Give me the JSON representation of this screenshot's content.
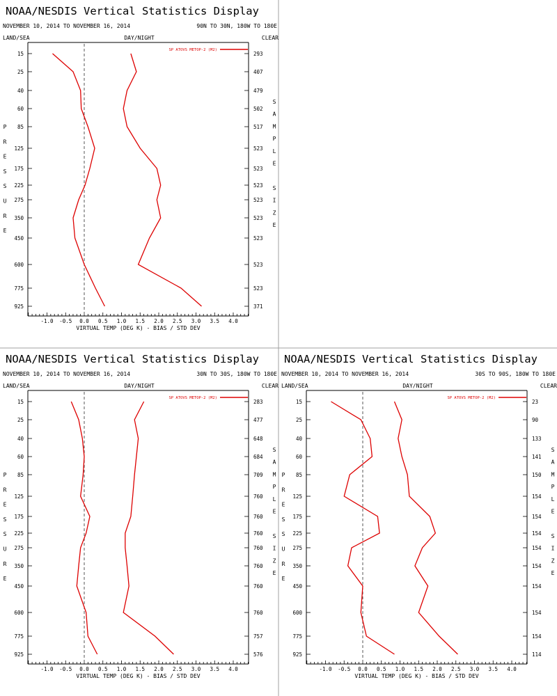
{
  "chart_data": [
    {
      "type": "line",
      "title": "NOAA/NESDIS Vertical Statistics Display",
      "date_range": "NOVEMBER 10, 2014 TO NOVEMBER 16, 2014",
      "region": "90N TO 30N, 180W TO 180E",
      "top_left_label": "LAND/SEA",
      "top_center_label": "DAY/NIGHT",
      "top_right_label": "CLEAR",
      "left_axis_title": "PRESSURE",
      "right_axis_title": "SAMPLE SIZE",
      "xlabel": "VIRTUAL TEMP (DEG K) - BIAS / STD DEV",
      "legend": "SP ATOVS METOP-2 (M2)",
      "legend_position": "top-right",
      "x_ticks": [
        "-1.0",
        "-0.5",
        "0.0",
        "0.5",
        "1.0",
        "1.5",
        "2.0",
        "2.5",
        "3.0",
        "3.5",
        "4.0"
      ],
      "xlim": [
        -1.5,
        4.5
      ],
      "pressure_levels": [
        "15",
        "25",
        "40",
        "60",
        "85",
        "125",
        "175",
        "225",
        "275",
        "350",
        "450",
        "600",
        "775",
        "925"
      ],
      "sample_size": [
        "293",
        "407",
        "479",
        "502",
        "517",
        "523",
        "523",
        "523",
        "523",
        "523",
        "523",
        "523",
        "523",
        "371"
      ],
      "bias": [
        -0.85,
        -0.3,
        -0.1,
        -0.08,
        0.1,
        0.28,
        0.15,
        0.02,
        -0.15,
        -0.3,
        -0.25,
        0.0,
        0.3,
        0.55
      ],
      "std_dev": [
        1.25,
        1.4,
        1.15,
        1.05,
        1.15,
        1.5,
        1.95,
        2.05,
        1.95,
        2.05,
        1.75,
        1.45,
        2.6,
        3.15
      ],
      "line_color": "#dd0000"
    },
    {
      "type": "line",
      "title": "NOAA/NESDIS Vertical Statistics Display",
      "date_range": "NOVEMBER 10, 2014 TO NOVEMBER 16, 2014",
      "region": "30N TO 30S, 180W TO 180E",
      "top_left_label": "LAND/SEA",
      "top_center_label": "DAY/NIGHT",
      "top_right_label": "CLEAR",
      "left_axis_title": "PRESSURE",
      "right_axis_title": "SAMPLE SIZE",
      "xlabel": "VIRTUAL TEMP (DEG K) - BIAS / STD DEV",
      "legend": "SP ATOVS METOP-2 (M2)",
      "legend_position": "top-right",
      "x_ticks": [
        "-1.0",
        "-0.5",
        "0.0",
        "0.5",
        "1.0",
        "1.5",
        "2.0",
        "2.5",
        "3.0",
        "3.5",
        "4.0"
      ],
      "xlim": [
        -1.5,
        4.5
      ],
      "pressure_levels": [
        "15",
        "25",
        "40",
        "60",
        "85",
        "125",
        "175",
        "225",
        "275",
        "350",
        "450",
        "600",
        "775",
        "925"
      ],
      "sample_size": [
        "283",
        "477",
        "648",
        "684",
        "709",
        "760",
        "760",
        "760",
        "760",
        "760",
        "760",
        "760",
        "757",
        "576"
      ],
      "bias": [
        -0.35,
        -0.15,
        -0.05,
        0.0,
        -0.03,
        -0.1,
        0.15,
        0.05,
        -0.1,
        -0.15,
        -0.2,
        0.05,
        0.1,
        0.35
      ],
      "std_dev": [
        1.6,
        1.35,
        1.45,
        1.4,
        1.35,
        1.3,
        1.25,
        1.1,
        1.1,
        1.15,
        1.2,
        1.05,
        1.9,
        2.4
      ],
      "line_color": "#dd0000"
    },
    {
      "type": "line",
      "title": "NOAA/NESDIS Vertical Statistics Display",
      "date_range": "NOVEMBER 10, 2014 TO NOVEMBER 16, 2014",
      "region": "30S TO 90S, 180W TO 180E",
      "top_left_label": "LAND/SEA",
      "top_center_label": "DAY/NIGHT",
      "top_right_label": "CLEAR",
      "left_axis_title": "PRESSURE",
      "right_axis_title": "SAMPLE SIZE",
      "xlabel": "VIRTUAL TEMP (DEG K) - BIAS / STD DEV",
      "legend": "SP ATOVS METOP-2 (M2)",
      "legend_position": "top-right",
      "x_ticks": [
        "-1.0",
        "-0.5",
        "0.0",
        "0.5",
        "1.0",
        "1.5",
        "2.0",
        "2.5",
        "3.0",
        "3.5",
        "4.0"
      ],
      "xlim": [
        -1.5,
        4.5
      ],
      "pressure_levels": [
        "15",
        "25",
        "40",
        "60",
        "85",
        "125",
        "175",
        "225",
        "275",
        "350",
        "450",
        "600",
        "775",
        "925"
      ],
      "sample_size": [
        "23",
        "90",
        "133",
        "141",
        "150",
        "154",
        "154",
        "154",
        "154",
        "154",
        "154",
        "154",
        "154",
        "114"
      ],
      "bias": [
        -0.85,
        -0.05,
        0.2,
        0.25,
        -0.35,
        -0.5,
        0.4,
        0.45,
        -0.3,
        -0.4,
        0.0,
        -0.05,
        0.1,
        0.85
      ],
      "std_dev": [
        0.85,
        1.05,
        0.95,
        1.05,
        1.2,
        1.25,
        1.8,
        1.95,
        1.6,
        1.4,
        1.75,
        1.5,
        2.05,
        2.55
      ],
      "line_color": "#dd0000"
    }
  ]
}
